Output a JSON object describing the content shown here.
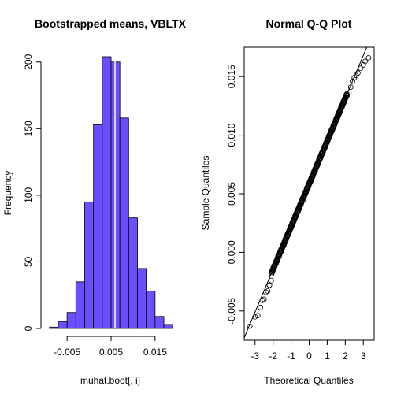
{
  "chart_data": [
    {
      "type": "bar",
      "title": "Bootstrapped means, VBLTX",
      "xlabel": "muhat.boot[, i]",
      "ylabel": "Frequency",
      "bin_edges": [
        -0.009,
        -0.007,
        -0.005,
        -0.003,
        -0.001,
        0.001,
        0.003,
        0.005,
        0.007,
        0.009,
        0.011,
        0.013,
        0.015,
        0.017,
        0.019
      ],
      "values": [
        1,
        5,
        12,
        35,
        95,
        153,
        204,
        200,
        158,
        83,
        45,
        28,
        9,
        3
      ],
      "xlim": [
        -0.0095,
        0.0195
      ],
      "ylim": [
        0,
        204
      ],
      "xticks": [
        -0.005,
        0.005,
        0.015
      ],
      "xtick_labels": [
        "-0.005",
        "0.005",
        "0.015"
      ],
      "yticks": [
        0,
        50,
        100,
        150,
        200
      ],
      "ytick_labels": [
        "0",
        "50",
        "100",
        "150",
        "200"
      ],
      "mean_line": 0.0059,
      "bar_color": "#6b4fff",
      "mean_line_color": "#ffffff",
      "grid": false
    },
    {
      "type": "scatter",
      "title": "Normal Q-Q Plot",
      "xlabel": "Theoretical Quantiles",
      "ylabel": "Sample Quantiles",
      "xlim": [
        -3.6,
        3.6
      ],
      "ylim": [
        -0.0075,
        0.0175
      ],
      "xticks": [
        -3,
        -2,
        -1,
        0,
        1,
        2,
        3
      ],
      "xtick_labels": [
        "-3",
        "-2",
        "-1",
        "0",
        "1",
        "2",
        "3"
      ],
      "yticks": [
        -0.005,
        0.0,
        0.005,
        0.01,
        0.015
      ],
      "ytick_labels": [
        "-0.005",
        "0.000",
        "0.005",
        "0.010",
        "0.015"
      ],
      "tail_points": {
        "x": [
          -3.29,
          -3.0,
          -2.85,
          -2.7,
          -2.6,
          -2.5,
          -2.4,
          -2.3,
          -2.2,
          -2.1,
          2.1,
          2.2,
          2.3,
          2.4,
          2.5,
          2.6,
          2.7,
          2.85,
          3.0,
          3.1,
          3.29
        ],
        "y": [
          -0.0063,
          -0.0055,
          -0.0054,
          -0.0047,
          -0.0041,
          -0.004,
          -0.0034,
          -0.0033,
          -0.0028,
          -0.0024,
          0.0134,
          0.0136,
          0.0141,
          0.0146,
          0.0149,
          0.0151,
          0.0153,
          0.0157,
          0.016,
          0.0163,
          0.0166
        ]
      },
      "body_range": {
        "x": [
          -2.1,
          2.1
        ],
        "mean": 0.00585,
        "sd": 0.00365
      },
      "reference_line": {
        "intercept": 0.00585,
        "slope": 0.00365
      },
      "marker": "open-circle",
      "grid": false
    }
  ]
}
